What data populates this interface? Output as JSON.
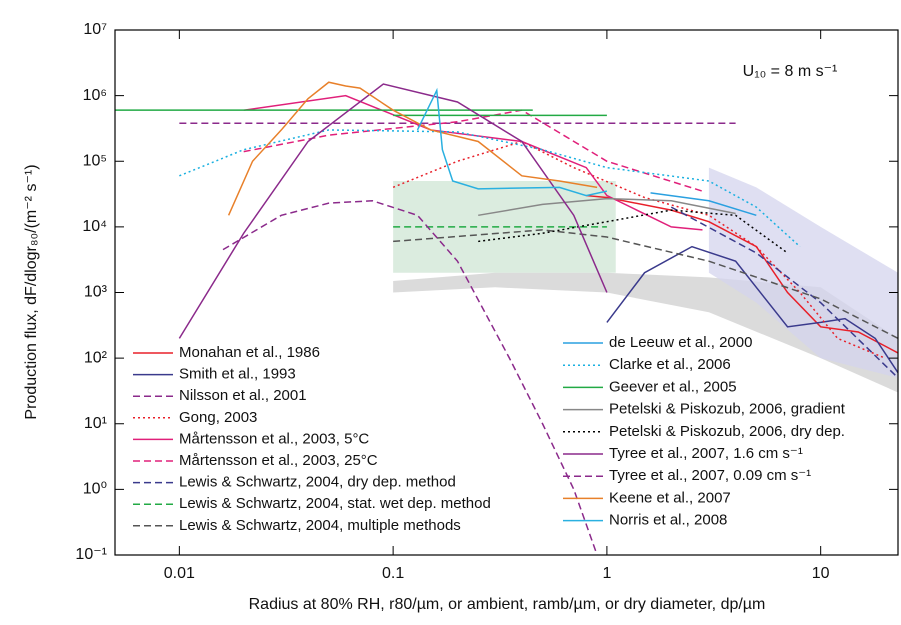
{
  "chart_data": {
    "type": "line",
    "annotation": "U₁₀ = 8 m s⁻¹",
    "x_label": "Radius at 80% RH, r80/µm, or ambient, ramb/µm, or dry diameter, dp/µm",
    "y_label": "Production flux, dF/dlogr₈₀/(m⁻² s⁻¹)",
    "xlog": true,
    "ylog": true,
    "xlim": [
      0.005,
      23
    ],
    "ylim": [
      0.1,
      10000000
    ],
    "xticks": [
      0.01,
      0.1,
      1,
      10
    ],
    "yticks": [
      {
        "value": 0.1,
        "label": "10⁻¹"
      },
      {
        "value": 1,
        "label": "10⁰"
      },
      {
        "value": 10,
        "label": "10¹"
      },
      {
        "value": 100,
        "label": "10²"
      },
      {
        "value": 1000,
        "label": "10³"
      },
      {
        "value": 10000,
        "label": "10⁴"
      },
      {
        "value": 100000,
        "label": "10⁵"
      },
      {
        "value": 1000000,
        "label": "10⁶"
      },
      {
        "value": 10000000,
        "label": "10⁷"
      }
    ],
    "bands": [
      {
        "color": "#cfe6d4",
        "x": [
          0.1,
          1.1
        ],
        "lower": [
          2000,
          2000
        ],
        "upper": [
          50000,
          50000
        ]
      },
      {
        "color": "#cfcfcf",
        "x": [
          0.1,
          0.3,
          1,
          3,
          10,
          23
        ],
        "lower": [
          1000,
          1200,
          1000,
          500,
          100,
          30
        ],
        "upper": [
          1500,
          2000,
          2000,
          1700,
          1200,
          200
        ]
      },
      {
        "color": "#d4d4ee",
        "x": [
          3,
          5,
          10,
          23
        ],
        "lower": [
          2000,
          700,
          100,
          50
        ],
        "upper": [
          80000,
          40000,
          10000,
          2000
        ]
      }
    ],
    "series": [
      {
        "name": "Monahan et al., 1986",
        "color": "#e8202a",
        "dash": "solid",
        "x": [
          0.8,
          1,
          2,
          3,
          5,
          7,
          10,
          15,
          23
        ],
        "values": [
          30000,
          28000,
          18000,
          12000,
          5000,
          1000,
          300,
          250,
          120
        ]
      },
      {
        "name": "Smith et al., 1993",
        "color": "#3a3a8c",
        "dash": "solid",
        "x": [
          1,
          1.5,
          2.5,
          4,
          7,
          10,
          13,
          18,
          23
        ],
        "values": [
          350,
          2000,
          5000,
          3000,
          300,
          350,
          400,
          200,
          60
        ]
      },
      {
        "name": "Nilsson et al., 2001",
        "color": "#8b2a8b",
        "dash": "dashed",
        "x": [
          0.01,
          4
        ],
        "values": [
          380000,
          380000
        ]
      },
      {
        "name": "Gong, 2003",
        "color": "#e8202a",
        "dash": "dotted",
        "x": [
          0.1,
          0.2,
          0.4,
          0.7,
          1.5,
          3,
          5,
          8,
          12,
          20
        ],
        "values": [
          40000,
          100000,
          200000,
          80000,
          28000,
          15000,
          5000,
          1000,
          200,
          100
        ]
      },
      {
        "name": "Mårtensson et al., 2003, 5°C",
        "color": "#e0207a",
        "dash": "solid",
        "x": [
          0.02,
          0.06,
          0.15,
          0.4,
          0.8,
          1,
          2,
          2.8
        ],
        "values": [
          600000,
          1000000,
          300000,
          200000,
          80000,
          30000,
          10000,
          9000
        ]
      },
      {
        "name": "Mårtensson et al., 2003, 25°C",
        "color": "#e0207a",
        "dash": "dashed",
        "x": [
          0.02,
          0.05,
          0.2,
          0.4,
          1,
          2.8
        ],
        "values": [
          140000,
          250000,
          400000,
          600000,
          100000,
          35000
        ]
      },
      {
        "name": "Lewis & Schwartz, 2004, dry dep. method",
        "color": "#3a3a8c",
        "dash": "dashed",
        "x": [
          2,
          5,
          10,
          23
        ],
        "values": [
          20000,
          4000,
          700,
          50
        ]
      },
      {
        "name": "Lewis & Schwartz, 2004, stat. wet dep. method",
        "color": "#22aa44",
        "dash": "dashed",
        "x": [
          0.1,
          1
        ],
        "values": [
          10000,
          10000
        ]
      },
      {
        "name": "Lewis & Schwartz, 2004, multiple methods",
        "color": "#555555",
        "dash": "dashed",
        "x": [
          0.1,
          0.5,
          1,
          3,
          10,
          23
        ],
        "values": [
          6000,
          9000,
          7000,
          3000,
          800,
          200
        ]
      },
      {
        "name": "de Leeuw et al., 2000",
        "color": "#2aa0e0",
        "dash": "solid",
        "x": [
          1.6,
          3,
          5
        ],
        "values": [
          33000,
          25000,
          15000
        ]
      },
      {
        "name": "Clarke et al., 2006",
        "color": "#1ab0e0",
        "dash": "dotted",
        "x": [
          0.01,
          0.02,
          0.05,
          0.2,
          0.5,
          1,
          3,
          5,
          8
        ],
        "values": [
          60000,
          150000,
          300000,
          280000,
          150000,
          80000,
          50000,
          20000,
          5000
        ]
      },
      {
        "name": "Geever et al., 2005",
        "color": "#22aa44",
        "dash": "solid",
        "x": [
          0.005,
          0.45,
          0.47,
          0.1,
          1
        ],
        "values": [
          600000,
          600000,
          null,
          500000,
          500000
        ]
      },
      {
        "name": "Petelski & Piskozub, 2006, gradient",
        "color": "#888888",
        "dash": "solid",
        "x": [
          0.25,
          0.5,
          1,
          2,
          4
        ],
        "values": [
          15000,
          22000,
          27000,
          25000,
          16000
        ]
      },
      {
        "name": "Petelski & Piskozub, 2006, dry dep.",
        "color": "#000000",
        "dash": "dotted",
        "x": [
          0.25,
          0.5,
          1,
          2,
          4,
          7
        ],
        "values": [
          6000,
          8000,
          12000,
          18000,
          15000,
          4000
        ]
      },
      {
        "name": "Tyree et al., 2007, 1.6 cm s⁻¹",
        "color": "#8b2a8b",
        "dash": "solid",
        "x": [
          0.01,
          0.02,
          0.04,
          0.09,
          0.2,
          0.4,
          0.7,
          1
        ],
        "values": [
          200,
          8000,
          200000,
          1500000,
          800000,
          200000,
          15000,
          1000
        ]
      },
      {
        "name": "Tyree et al., 2007, 0.09 cm s⁻¹",
        "color": "#8b2a8b",
        "dash": "dashed",
        "x": [
          0.016,
          0.03,
          0.05,
          0.08,
          0.13,
          0.2,
          0.35,
          0.5,
          0.7,
          0.9
        ],
        "values": [
          4500,
          15000,
          23000,
          25000,
          15000,
          3000,
          100,
          10,
          1,
          0.1
        ]
      },
      {
        "name": "Keene et al., 2007",
        "color": "#e8802a",
        "dash": "solid",
        "x": [
          0.017,
          0.022,
          0.03,
          0.04,
          0.05,
          0.06,
          0.07,
          0.1,
          0.15,
          0.25,
          0.4,
          0.6,
          0.9
        ],
        "values": [
          15000,
          100000,
          300000,
          900000,
          1600000,
          1400000,
          1300000,
          600000,
          300000,
          200000,
          60000,
          50000,
          40000
        ]
      },
      {
        "name": "Norris et al., 2008",
        "color": "#2ab0e0",
        "dash": "solid",
        "x": [
          0.13,
          0.16,
          0.17,
          0.19,
          0.25,
          0.6,
          0.8,
          1
        ],
        "values": [
          300000,
          1200000,
          150000,
          50000,
          38000,
          40000,
          30000,
          35000
        ]
      }
    ]
  }
}
